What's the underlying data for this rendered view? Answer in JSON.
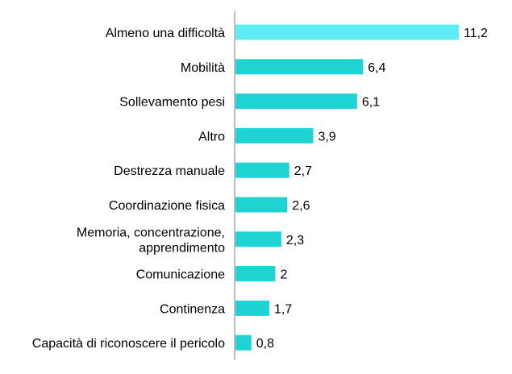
{
  "chart_data": {
    "type": "bar",
    "orientation": "horizontal",
    "categories": [
      [
        "Almeno una difficoltà"
      ],
      [
        "Mobilità"
      ],
      [
        "Sollevamento pesi"
      ],
      [
        "Altro"
      ],
      [
        "Destrezza manuale"
      ],
      [
        "Coordinazione fisica"
      ],
      [
        "Memoria, concentrazione,",
        "apprendimento"
      ],
      [
        "Comunicazione"
      ],
      [
        "Continenza"
      ],
      [
        "Capacità di riconoscere il pericolo"
      ]
    ],
    "values": [
      11.2,
      6.4,
      6.1,
      3.9,
      2.7,
      2.6,
      2.3,
      2,
      1.7,
      0.8
    ],
    "value_labels": [
      "11,2",
      "6,4",
      "6,1",
      "3,9",
      "2,7",
      "2,6",
      "2,3",
      "2",
      "1,7",
      "0,8"
    ],
    "xlim": [
      0,
      11.2
    ],
    "grid": false,
    "legend": "none",
    "colors": {
      "highlight_bar": "#5EEDF4",
      "bar": "#1FD3D3",
      "axis": "#7f7f7f",
      "text": "#000000"
    }
  }
}
